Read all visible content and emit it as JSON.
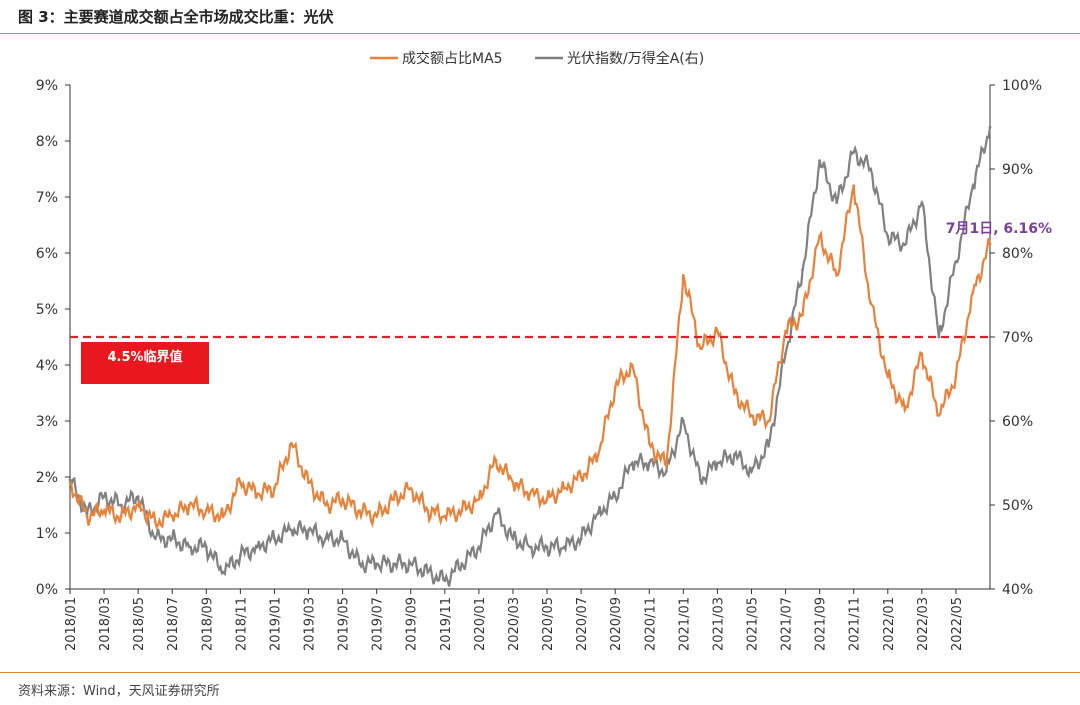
{
  "figure": {
    "title": "图 3：主要赛道成交额占全市场成交比重：光伏",
    "source": "资料来源：Wind，天风证券研究所"
  },
  "chart_data": {
    "type": "line",
    "x_ticks": [
      "2018/01",
      "2018/03",
      "2018/05",
      "2018/07",
      "2018/09",
      "2018/11",
      "2019/01",
      "2019/03",
      "2019/05",
      "2019/07",
      "2019/09",
      "2019/11",
      "2020/01",
      "2020/03",
      "2020/05",
      "2020/07",
      "2020/09",
      "2020/11",
      "2021/01",
      "2021/03",
      "2021/05",
      "2021/07",
      "2021/09",
      "2021/11",
      "2022/01",
      "2022/03",
      "2022/05"
    ],
    "y_left": {
      "range": [
        0,
        9
      ],
      "ticks": [
        "0%",
        "1%",
        "2%",
        "3%",
        "4%",
        "5%",
        "6%",
        "7%",
        "8%",
        "9%"
      ]
    },
    "y_right": {
      "range": [
        40,
        100
      ],
      "ticks": [
        "40%",
        "50%",
        "60%",
        "70%",
        "80%",
        "90%",
        "100%"
      ]
    },
    "legend": {
      "position": "top-center"
    },
    "series": [
      {
        "name": "成交额占比MA5",
        "axis": "left",
        "color": "#e8823a",
        "points": [
          [
            "2018/01",
            1.9
          ],
          [
            "2018/02",
            1.3
          ],
          [
            "2018/03",
            1.4
          ],
          [
            "2018/04",
            1.3
          ],
          [
            "2018/05",
            1.5
          ],
          [
            "2018/06",
            1.2
          ],
          [
            "2018/07",
            1.3
          ],
          [
            "2018/08",
            1.5
          ],
          [
            "2018/09",
            1.4
          ],
          [
            "2018/10",
            1.3
          ],
          [
            "2018/11",
            1.9
          ],
          [
            "2018/12",
            1.7
          ],
          [
            "2019/01",
            1.8
          ],
          [
            "2019/02",
            2.6
          ],
          [
            "2019/03",
            1.9
          ],
          [
            "2019/04",
            1.5
          ],
          [
            "2019/05",
            1.6
          ],
          [
            "2019/06",
            1.4
          ],
          [
            "2019/07",
            1.3
          ],
          [
            "2019/08",
            1.6
          ],
          [
            "2019/09",
            1.8
          ],
          [
            "2019/10",
            1.4
          ],
          [
            "2019/11",
            1.3
          ],
          [
            "2019/12",
            1.4
          ],
          [
            "2020/01",
            1.6
          ],
          [
            "2020/02",
            2.3
          ],
          [
            "2020/03",
            1.9
          ],
          [
            "2020/04",
            1.7
          ],
          [
            "2020/05",
            1.6
          ],
          [
            "2020/06",
            1.8
          ],
          [
            "2020/07",
            2.0
          ],
          [
            "2020/08",
            2.4
          ],
          [
            "2020/09",
            3.6
          ],
          [
            "2020/10",
            4.0
          ],
          [
            "2020/11",
            2.6
          ],
          [
            "2020/12",
            2.2
          ],
          [
            "2021/01",
            5.6
          ],
          [
            "2021/02",
            4.3
          ],
          [
            "2021/03",
            4.6
          ],
          [
            "2021/04",
            3.5
          ],
          [
            "2021/05",
            3.1
          ],
          [
            "2021/06",
            3.0
          ],
          [
            "2021/07",
            4.6
          ],
          [
            "2021/08",
            4.9
          ],
          [
            "2021/09",
            6.3
          ],
          [
            "2021/10",
            5.6
          ],
          [
            "2021/11",
            7.2
          ],
          [
            "2021/12",
            5.1
          ],
          [
            "2022/01",
            3.8
          ],
          [
            "2022/02",
            3.2
          ],
          [
            "2022/03",
            4.2
          ],
          [
            "2022/04",
            3.1
          ],
          [
            "2022/05",
            3.8
          ],
          [
            "2022/06",
            5.3
          ],
          [
            "2022/07",
            6.16
          ]
        ]
      },
      {
        "name": "光伏指数/万得全A(右)",
        "axis": "right",
        "color": "#808080",
        "points": [
          [
            "2018/01",
            53
          ],
          [
            "2018/02",
            49
          ],
          [
            "2018/03",
            51
          ],
          [
            "2018/04",
            50
          ],
          [
            "2018/05",
            51
          ],
          [
            "2018/06",
            46
          ],
          [
            "2018/07",
            46
          ],
          [
            "2018/08",
            45
          ],
          [
            "2018/09",
            45
          ],
          [
            "2018/10",
            42
          ],
          [
            "2018/11",
            44
          ],
          [
            "2018/12",
            45
          ],
          [
            "2019/01",
            46
          ],
          [
            "2019/02",
            47
          ],
          [
            "2019/03",
            47
          ],
          [
            "2019/04",
            46
          ],
          [
            "2019/05",
            46
          ],
          [
            "2019/06",
            43
          ],
          [
            "2019/07",
            43
          ],
          [
            "2019/08",
            43
          ],
          [
            "2019/09",
            43
          ],
          [
            "2019/10",
            42
          ],
          [
            "2019/11",
            41
          ],
          [
            "2019/12",
            43
          ],
          [
            "2020/01",
            45
          ],
          [
            "2020/02",
            49
          ],
          [
            "2020/03",
            46
          ],
          [
            "2020/04",
            45
          ],
          [
            "2020/05",
            45
          ],
          [
            "2020/06",
            45
          ],
          [
            "2020/07",
            46
          ],
          [
            "2020/08",
            49
          ],
          [
            "2020/09",
            51
          ],
          [
            "2020/10",
            55
          ],
          [
            "2020/11",
            55
          ],
          [
            "2020/12",
            54
          ],
          [
            "2021/01",
            60
          ],
          [
            "2021/02",
            53
          ],
          [
            "2021/03",
            55
          ],
          [
            "2021/04",
            56
          ],
          [
            "2021/05",
            54
          ],
          [
            "2021/06",
            57
          ],
          [
            "2021/07",
            68
          ],
          [
            "2021/08",
            78
          ],
          [
            "2021/09",
            91
          ],
          [
            "2021/10",
            86
          ],
          [
            "2021/11",
            92
          ],
          [
            "2021/12",
            90
          ],
          [
            "2022/01",
            82
          ],
          [
            "2022/02",
            81
          ],
          [
            "2022/03",
            86
          ],
          [
            "2022/04",
            70
          ],
          [
            "2022/05",
            79
          ],
          [
            "2022/06",
            88
          ],
          [
            "2022/07",
            95
          ]
        ]
      }
    ],
    "threshold": {
      "value": 4.5,
      "axis": "left",
      "color": "#d9232a",
      "style": "dashed",
      "label": "4.5%临界值"
    },
    "annotation": {
      "text": "7月1日, 6.16%",
      "color": "#7a3e9d"
    }
  }
}
